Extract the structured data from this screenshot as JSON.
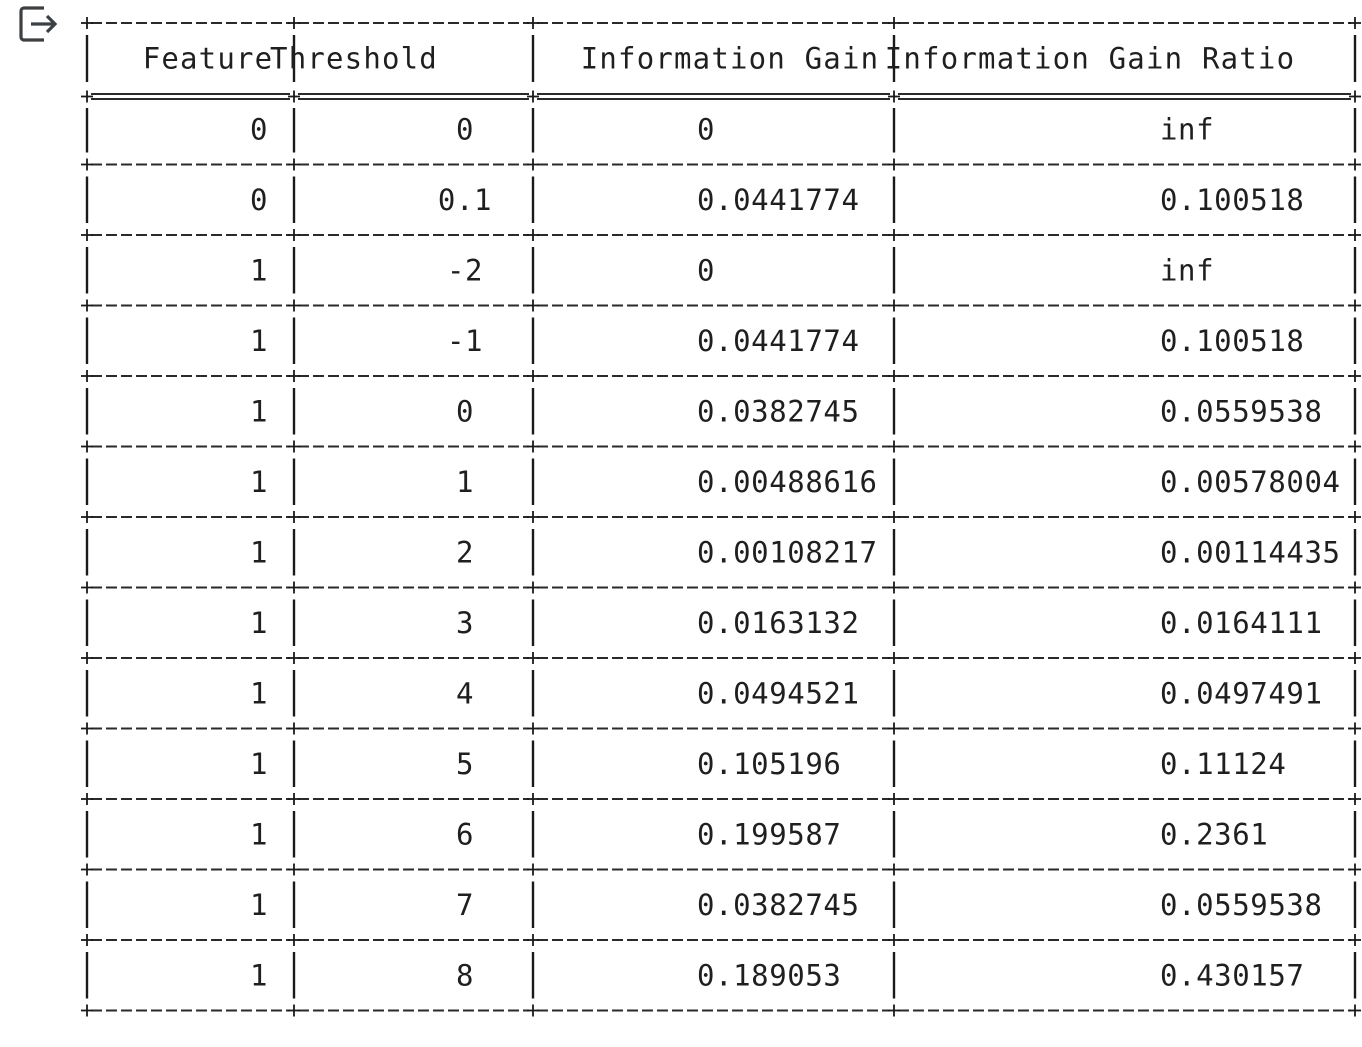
{
  "output_cell": {
    "icon": "output-redirect-icon"
  },
  "table": {
    "headers": [
      "Feature",
      "Threshold",
      "Information Gain",
      "Information Gain Ratio"
    ],
    "rows": [
      [
        "0",
        "0",
        "0",
        "inf"
      ],
      [
        "0",
        "0.1",
        "0.0441774",
        "0.100518"
      ],
      [
        "1",
        "-2",
        "0",
        "inf"
      ],
      [
        "1",
        "-1",
        "0.0441774",
        "0.100518"
      ],
      [
        "1",
        "0",
        "0.0382745",
        "0.0559538"
      ],
      [
        "1",
        "1",
        "0.00488616",
        "0.00578004"
      ],
      [
        "1",
        "2",
        "0.00108217",
        "0.00114435"
      ],
      [
        "1",
        "3",
        "0.0163132",
        "0.0164111"
      ],
      [
        "1",
        "4",
        "0.0494521",
        "0.0497491"
      ],
      [
        "1",
        "5",
        "0.105196",
        "0.11124"
      ],
      [
        "1",
        "6",
        "0.199587",
        "0.2361"
      ],
      [
        "1",
        "7",
        "0.0382745",
        "0.0559538"
      ],
      [
        "1",
        "8",
        "0.189053",
        "0.430157"
      ]
    ]
  }
}
